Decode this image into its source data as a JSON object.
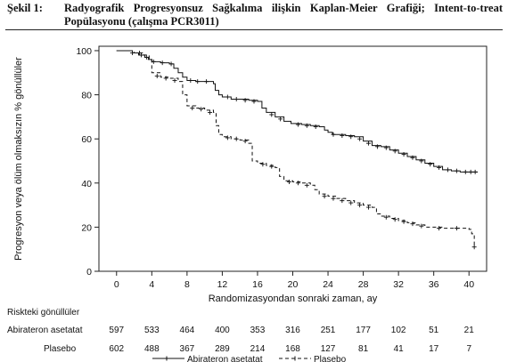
{
  "caption": {
    "number": "Şekil 1:",
    "text": "Radyografik Progresyonsuz Sağkalıma ilişkin Kaplan-Meier Grafiği; Intent-to-treat Popülasyonu (çalışma PCR3011)"
  },
  "chart_data": {
    "type": "line",
    "subtype": "kaplan-meier-step",
    "xlabel": "Randomizasyondan sonraki zaman, ay",
    "ylabel": "Progresyon veya ölüm olmaksızın % gönüllüler",
    "xlim": [
      -2,
      42
    ],
    "ylim": [
      0,
      102
    ],
    "xticks": [
      0,
      4,
      8,
      12,
      16,
      20,
      24,
      28,
      32,
      36,
      40
    ],
    "yticks": [
      0,
      20,
      40,
      60,
      80,
      100
    ],
    "grid": false,
    "legend_position": "bottom-center",
    "series": [
      {
        "name": "Abirateron asetatat",
        "color": "#111111",
        "dash": "solid",
        "points": [
          [
            0,
            100
          ],
          [
            1,
            100
          ],
          [
            1.8,
            99
          ],
          [
            2.5,
            98
          ],
          [
            3.2,
            97
          ],
          [
            3.6,
            96
          ],
          [
            4,
            95
          ],
          [
            5,
            94.5
          ],
          [
            6,
            94
          ],
          [
            6.5,
            92
          ],
          [
            7,
            90
          ],
          [
            7.5,
            88
          ],
          [
            8,
            86.5
          ],
          [
            9,
            86
          ],
          [
            10,
            86
          ],
          [
            11,
            85
          ],
          [
            11.2,
            82
          ],
          [
            11.6,
            80
          ],
          [
            12,
            79
          ],
          [
            13,
            78
          ],
          [
            15,
            77.5
          ],
          [
            16,
            77
          ],
          [
            16.5,
            74
          ],
          [
            17,
            72
          ],
          [
            18,
            70
          ],
          [
            19,
            68
          ],
          [
            19.8,
            67
          ],
          [
            21,
            66.5
          ],
          [
            22,
            66
          ],
          [
            23,
            65.5
          ],
          [
            23.6,
            64
          ],
          [
            24,
            63
          ],
          [
            24.5,
            62
          ],
          [
            26,
            61.5
          ],
          [
            27,
            61
          ],
          [
            28,
            59
          ],
          [
            29,
            57
          ],
          [
            30,
            56.5
          ],
          [
            31,
            55
          ],
          [
            32,
            53.5
          ],
          [
            33,
            52
          ],
          [
            34,
            50.5
          ],
          [
            35,
            49
          ],
          [
            36,
            47.5
          ],
          [
            37,
            46
          ],
          [
            38,
            45.5
          ],
          [
            39,
            45
          ],
          [
            40,
            45
          ],
          [
            41,
            45
          ]
        ],
        "censor_marks": [
          [
            2.6,
            99
          ],
          [
            3.4,
            97
          ],
          [
            4.2,
            95
          ],
          [
            5.2,
            94.5
          ],
          [
            6.2,
            94
          ],
          [
            8.4,
            86.5
          ],
          [
            9.2,
            86
          ],
          [
            10.2,
            86
          ],
          [
            12.6,
            79
          ],
          [
            13.6,
            78
          ],
          [
            14.6,
            77.5
          ],
          [
            15.6,
            77
          ],
          [
            17.6,
            71
          ],
          [
            18.6,
            69
          ],
          [
            20.6,
            66.5
          ],
          [
            21.6,
            66
          ],
          [
            22.6,
            65.5
          ],
          [
            24.6,
            62
          ],
          [
            25.6,
            61.5
          ],
          [
            26.6,
            61
          ],
          [
            27.6,
            60
          ],
          [
            28.6,
            58
          ],
          [
            29.6,
            56.5
          ],
          [
            30.6,
            56
          ],
          [
            31.6,
            54.5
          ],
          [
            32.6,
            53
          ],
          [
            33.6,
            51.5
          ],
          [
            34.6,
            50
          ],
          [
            35.6,
            48.5
          ],
          [
            36.6,
            47
          ],
          [
            37.6,
            46
          ],
          [
            38.6,
            45.5
          ],
          [
            39.6,
            45
          ],
          [
            40.2,
            45
          ],
          [
            40.7,
            45
          ]
        ]
      },
      {
        "name": "Plasebo",
        "color": "#111111",
        "dash": "4,3",
        "points": [
          [
            0,
            100
          ],
          [
            1,
            100
          ],
          [
            2,
            99
          ],
          [
            3,
            98
          ],
          [
            3.7,
            96
          ],
          [
            4,
            90
          ],
          [
            5,
            88
          ],
          [
            6,
            87.5
          ],
          [
            7,
            86
          ],
          [
            7.5,
            80
          ],
          [
            8,
            75
          ],
          [
            9,
            74
          ],
          [
            10,
            73
          ],
          [
            11,
            72
          ],
          [
            11.3,
            66
          ],
          [
            11.6,
            62
          ],
          [
            12,
            61
          ],
          [
            13,
            60
          ],
          [
            14,
            59.5
          ],
          [
            15,
            58
          ],
          [
            15.4,
            50
          ],
          [
            16,
            49
          ],
          [
            17,
            48
          ],
          [
            18,
            47
          ],
          [
            18.5,
            43
          ],
          [
            19,
            41
          ],
          [
            20,
            40.5
          ],
          [
            21,
            40
          ],
          [
            22,
            39
          ],
          [
            22.5,
            37
          ],
          [
            23,
            35
          ],
          [
            24,
            34
          ],
          [
            25,
            33
          ],
          [
            26,
            32
          ],
          [
            27,
            31
          ],
          [
            28,
            30
          ],
          [
            29,
            29
          ],
          [
            29.5,
            26
          ],
          [
            30,
            25
          ],
          [
            31,
            24
          ],
          [
            32,
            23
          ],
          [
            33,
            22
          ],
          [
            34,
            21
          ],
          [
            35,
            20
          ],
          [
            36,
            20
          ],
          [
            37,
            19.5
          ],
          [
            38,
            19.5
          ],
          [
            39,
            19.5
          ],
          [
            40,
            19
          ],
          [
            40.3,
            17
          ],
          [
            40.6,
            11
          ]
        ],
        "censor_marks": [
          [
            1.8,
            99
          ],
          [
            2.8,
            98
          ],
          [
            4.6,
            88.5
          ],
          [
            5.6,
            87.5
          ],
          [
            6.6,
            86.5
          ],
          [
            8.6,
            74
          ],
          [
            9.6,
            73.5
          ],
          [
            10.6,
            72
          ],
          [
            12.6,
            60.5
          ],
          [
            13.6,
            60
          ],
          [
            14.6,
            59
          ],
          [
            16.6,
            48.5
          ],
          [
            17.6,
            47.5
          ],
          [
            19.6,
            40.5
          ],
          [
            20.6,
            40
          ],
          [
            21.6,
            39
          ],
          [
            23.6,
            34
          ],
          [
            24.6,
            33
          ],
          [
            25.6,
            32
          ],
          [
            26.6,
            31
          ],
          [
            27.6,
            30
          ],
          [
            28.6,
            29
          ],
          [
            30.6,
            24.5
          ],
          [
            31.6,
            23.5
          ],
          [
            32.6,
            22.5
          ],
          [
            33.6,
            21.5
          ],
          [
            34.6,
            20.5
          ],
          [
            36.6,
            19.5
          ],
          [
            38.6,
            19.5
          ],
          [
            40.6,
            11
          ]
        ]
      }
    ],
    "risk_table": {
      "title": "Riskteki gönüllüler",
      "times": [
        0,
        4,
        8,
        12,
        16,
        20,
        24,
        28,
        32,
        36,
        40
      ],
      "rows": [
        {
          "label": "Abirateron asetatat",
          "counts": [
            "597",
            "533",
            "464",
            "400",
            "353",
            "316",
            "251",
            "177",
            "102",
            "51",
            "21"
          ]
        },
        {
          "label": "Plasebo",
          "counts": [
            "602",
            "488",
            "367",
            "289",
            "214",
            "168",
            "127",
            "81",
            "41",
            "17",
            "7"
          ]
        }
      ]
    }
  }
}
